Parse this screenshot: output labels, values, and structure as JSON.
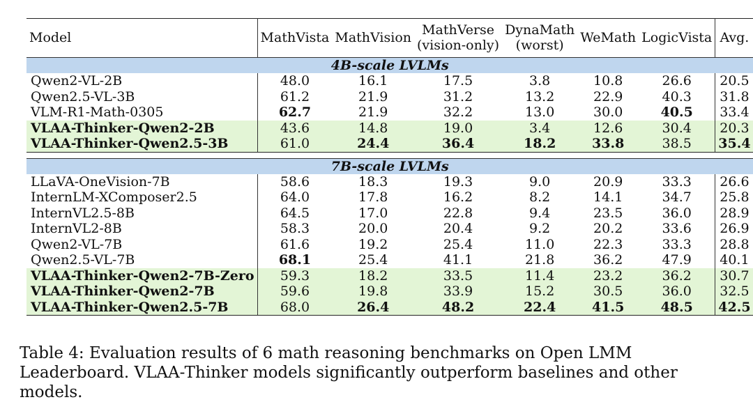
{
  "table": {
    "columns": [
      {
        "label": "Model"
      },
      {
        "label": "MathVista"
      },
      {
        "label": "MathVision"
      },
      {
        "label": "MathVerse",
        "sub": "(vision-only)"
      },
      {
        "label": "DynaMath",
        "sub": "(worst)"
      },
      {
        "label": "WeMath"
      },
      {
        "label": "LogicVista"
      },
      {
        "label": "Avg."
      }
    ],
    "sections": [
      {
        "title": "4B-scale LVLMs",
        "rows": [
          {
            "model": "Qwen2-VL-2B",
            "values": [
              "48.0",
              "16.1",
              "17.5",
              "3.8",
              "10.8",
              "26.6",
              "20.5"
            ],
            "bold": [],
            "highlight": false
          },
          {
            "model": "Qwen2.5-VL-3B",
            "values": [
              "61.2",
              "21.9",
              "31.2",
              "13.2",
              "22.9",
              "40.3",
              "31.8"
            ],
            "bold": [],
            "highlight": false
          },
          {
            "model": "VLM-R1-Math-0305",
            "values": [
              "62.7",
              "21.9",
              "32.2",
              "13.0",
              "30.0",
              "40.5",
              "33.4"
            ],
            "bold": [
              0,
              5
            ],
            "highlight": false
          },
          {
            "model": "VLAA-Thinker-Qwen2-2B",
            "values": [
              "43.6",
              "14.8",
              "19.0",
              "3.4",
              "12.6",
              "30.4",
              "20.3"
            ],
            "bold": [],
            "highlight": true
          },
          {
            "model": "VLAA-Thinker-Qwen2.5-3B",
            "values": [
              "61.0",
              "24.4",
              "36.4",
              "18.2",
              "33.8",
              "38.5",
              "35.4"
            ],
            "bold": [
              1,
              2,
              3,
              4,
              6
            ],
            "highlight": true
          }
        ]
      },
      {
        "title": "7B-scale LVLMs",
        "rows": [
          {
            "model": "LLaVA-OneVision-7B",
            "values": [
              "58.6",
              "18.3",
              "19.3",
              "9.0",
              "20.9",
              "33.3",
              "26.6"
            ],
            "bold": [],
            "highlight": false
          },
          {
            "model": "InternLM-XComposer2.5",
            "values": [
              "64.0",
              "17.8",
              "16.2",
              "8.2",
              "14.1",
              "34.7",
              "25.8"
            ],
            "bold": [],
            "highlight": false
          },
          {
            "model": "InternVL2.5-8B",
            "values": [
              "64.5",
              "17.0",
              "22.8",
              "9.4",
              "23.5",
              "36.0",
              "28.9"
            ],
            "bold": [],
            "highlight": false
          },
          {
            "model": "InternVL2-8B",
            "values": [
              "58.3",
              "20.0",
              "20.4",
              "9.2",
              "20.2",
              "33.6",
              "26.9"
            ],
            "bold": [],
            "highlight": false
          },
          {
            "model": "Qwen2-VL-7B",
            "values": [
              "61.6",
              "19.2",
              "25.4",
              "11.0",
              "22.3",
              "33.3",
              "28.8"
            ],
            "bold": [],
            "highlight": false
          },
          {
            "model": "Qwen2.5-VL-7B",
            "values": [
              "68.1",
              "25.4",
              "41.1",
              "21.8",
              "36.2",
              "47.9",
              "40.1"
            ],
            "bold": [
              0
            ],
            "highlight": false
          },
          {
            "model": "VLAA-Thinker-Qwen2-7B-Zero",
            "values": [
              "59.3",
              "18.2",
              "33.5",
              "11.4",
              "23.2",
              "36.2",
              "30.7"
            ],
            "bold": [],
            "highlight": true
          },
          {
            "model": "VLAA-Thinker-Qwen2-7B",
            "values": [
              "59.6",
              "19.8",
              "33.9",
              "15.2",
              "30.5",
              "36.0",
              "32.5"
            ],
            "bold": [],
            "highlight": true
          },
          {
            "model": "VLAA-Thinker-Qwen2.5-7B",
            "values": [
              "68.0",
              "26.4",
              "48.2",
              "22.4",
              "41.5",
              "48.5",
              "42.5"
            ],
            "bold": [
              1,
              2,
              3,
              4,
              5,
              6
            ],
            "highlight": true
          }
        ]
      }
    ]
  },
  "caption": "Table 4: Evaluation results of 6 math reasoning benchmarks on Open LMM Leaderboard. VLAA-Thinker models significantly outperform baselines and other models.",
  "colors": {
    "section_header_bg": "#bfd6ee",
    "highlight_row_bg": "#e3f5d6"
  }
}
